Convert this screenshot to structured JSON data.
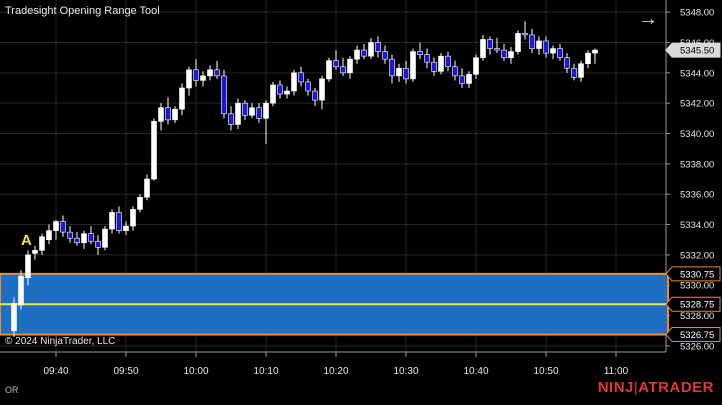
{
  "window": {
    "title": "Tradesight Opening Range Tool"
  },
  "footer": {
    "copyright": "© 2024 NinjaTrader, LLC",
    "status": "OR"
  },
  "brand": {
    "logo": "NINJATRADER",
    "color": "#e03a2a"
  },
  "marker": {
    "label": "A",
    "color": "#f3e44a"
  },
  "nav": {
    "icon": "arrow-right-icon"
  },
  "colors": {
    "background": "#000000",
    "grid": "#262626",
    "up": "#ffffff",
    "down": "#1a1ad6",
    "range_fill": "#1e6fc4",
    "range_border": "#f08a24",
    "range_mid": "#f3e44a"
  },
  "chart_data": {
    "type": "candlestick",
    "title": "Tradesight Opening Range Tool",
    "ylim": [
      5325.6,
      5348.8
    ],
    "y_ticks": [
      "5348.00",
      "5346.00",
      "5344.00",
      "5342.00",
      "5340.00",
      "5338.00",
      "5336.00",
      "5334.00",
      "5332.00",
      "5330.00",
      "5328.00",
      "5326.00"
    ],
    "x_ticks": [
      "09:40",
      "09:50",
      "10:00",
      "10:10",
      "10:20",
      "10:30",
      "10:40",
      "10:50",
      "11:00"
    ],
    "price_labels": [
      {
        "label": "5345.50",
        "value": 5345.5,
        "style": "last"
      },
      {
        "label": "5330.75",
        "value": 5330.75,
        "style": "range"
      },
      {
        "label": "5328.75",
        "value": 5328.75,
        "style": "range"
      },
      {
        "label": "5326.75",
        "value": 5326.75,
        "style": "range"
      }
    ],
    "opening_range": {
      "high": 5330.75,
      "mid": 5328.75,
      "low": 5326.75
    },
    "candles": [
      [
        5327.0,
        5329.2,
        5326.6,
        5328.8
      ],
      [
        5328.7,
        5331.0,
        5328.4,
        5330.6
      ],
      [
        5330.5,
        5332.3,
        5330.0,
        5332.0
      ],
      [
        5332.1,
        5332.6,
        5331.7,
        5332.3
      ],
      [
        5332.3,
        5333.4,
        5332.0,
        5333.2
      ],
      [
        5333.0,
        5334.0,
        5332.7,
        5333.6
      ],
      [
        5333.6,
        5334.3,
        5333.0,
        5334.2
      ],
      [
        5334.2,
        5334.6,
        5333.2,
        5333.5
      ],
      [
        5333.5,
        5333.9,
        5332.8,
        5333.1
      ],
      [
        5333.1,
        5333.5,
        5332.6,
        5332.8
      ],
      [
        5332.8,
        5333.6,
        5332.4,
        5333.4
      ],
      [
        5333.4,
        5333.9,
        5332.7,
        5332.9
      ],
      [
        5332.9,
        5333.3,
        5332.0,
        5332.5
      ],
      [
        5332.5,
        5333.9,
        5332.3,
        5333.7
      ],
      [
        5333.7,
        5335.0,
        5333.4,
        5334.8
      ],
      [
        5334.8,
        5335.2,
        5333.4,
        5333.6
      ],
      [
        5333.6,
        5334.2,
        5333.3,
        5333.9
      ],
      [
        5333.9,
        5335.2,
        5333.6,
        5335.0
      ],
      [
        5335.0,
        5336.0,
        5334.8,
        5335.8
      ],
      [
        5335.8,
        5337.3,
        5335.6,
        5337.0
      ],
      [
        5337.0,
        5341.0,
        5336.9,
        5340.8
      ],
      [
        5340.8,
        5342.0,
        5340.2,
        5341.7
      ],
      [
        5341.7,
        5342.4,
        5340.6,
        5340.9
      ],
      [
        5340.9,
        5341.8,
        5340.7,
        5341.6
      ],
      [
        5341.6,
        5343.3,
        5341.2,
        5343.0
      ],
      [
        5343.0,
        5344.4,
        5342.5,
        5344.2
      ],
      [
        5344.2,
        5344.9,
        5343.1,
        5343.5
      ],
      [
        5343.5,
        5344.1,
        5343.1,
        5343.8
      ],
      [
        5343.8,
        5344.5,
        5343.5,
        5344.2
      ],
      [
        5344.2,
        5344.8,
        5343.6,
        5343.8
      ],
      [
        5343.8,
        5344.2,
        5341.0,
        5341.3
      ],
      [
        5341.3,
        5341.8,
        5340.2,
        5340.6
      ],
      [
        5340.6,
        5342.3,
        5340.3,
        5342.0
      ],
      [
        5342.0,
        5342.2,
        5340.9,
        5341.2
      ],
      [
        5341.2,
        5342.0,
        5341.0,
        5341.7
      ],
      [
        5341.7,
        5342.0,
        5340.7,
        5341.0
      ],
      [
        5341.0,
        5342.2,
        5339.3,
        5342.0
      ],
      [
        5342.0,
        5343.4,
        5341.8,
        5343.2
      ],
      [
        5343.2,
        5343.5,
        5342.3,
        5342.6
      ],
      [
        5342.6,
        5343.1,
        5342.3,
        5342.8
      ],
      [
        5342.8,
        5344.2,
        5342.5,
        5344.0
      ],
      [
        5344.0,
        5344.4,
        5343.1,
        5343.4
      ],
      [
        5343.4,
        5343.6,
        5342.5,
        5342.8
      ],
      [
        5342.8,
        5343.0,
        5341.8,
        5342.2
      ],
      [
        5342.2,
        5343.8,
        5341.6,
        5343.6
      ],
      [
        5343.6,
        5345.0,
        5343.4,
        5344.8
      ],
      [
        5344.8,
        5345.5,
        5344.2,
        5344.4
      ],
      [
        5344.4,
        5345.0,
        5343.8,
        5344.0
      ],
      [
        5344.0,
        5345.1,
        5343.6,
        5344.9
      ],
      [
        5344.9,
        5345.8,
        5344.6,
        5345.5
      ],
      [
        5345.5,
        5345.9,
        5344.9,
        5345.1
      ],
      [
        5345.1,
        5346.3,
        5344.9,
        5346.0
      ],
      [
        5346.0,
        5346.4,
        5345.0,
        5345.4
      ],
      [
        5345.4,
        5345.8,
        5344.6,
        5344.9
      ],
      [
        5344.9,
        5345.2,
        5343.3,
        5343.8
      ],
      [
        5343.8,
        5344.6,
        5343.4,
        5344.3
      ],
      [
        5344.3,
        5344.8,
        5343.3,
        5343.6
      ],
      [
        5343.6,
        5345.6,
        5343.4,
        5345.4
      ],
      [
        5345.4,
        5346.0,
        5344.9,
        5345.2
      ],
      [
        5345.2,
        5345.6,
        5344.3,
        5344.7
      ],
      [
        5344.7,
        5345.0,
        5343.8,
        5344.1
      ],
      [
        5344.1,
        5345.3,
        5343.9,
        5345.1
      ],
      [
        5345.1,
        5345.4,
        5344.1,
        5344.4
      ],
      [
        5344.4,
        5344.8,
        5343.5,
        5343.8
      ],
      [
        5343.8,
        5344.3,
        5343.0,
        5343.3
      ],
      [
        5343.3,
        5344.1,
        5343.0,
        5343.9
      ],
      [
        5343.9,
        5345.2,
        5343.6,
        5345.0
      ],
      [
        5345.0,
        5346.5,
        5344.8,
        5346.2
      ],
      [
        5346.2,
        5346.4,
        5345.2,
        5345.6
      ],
      [
        5345.6,
        5346.3,
        5345.3,
        5345.5
      ],
      [
        5345.5,
        5345.9,
        5344.8,
        5345.0
      ],
      [
        5345.0,
        5345.7,
        5344.6,
        5345.4
      ],
      [
        5345.4,
        5346.8,
        5345.2,
        5346.6
      ],
      [
        5346.6,
        5347.4,
        5346.2,
        5346.5
      ],
      [
        5346.5,
        5346.9,
        5345.3,
        5345.6
      ],
      [
        5345.6,
        5346.4,
        5345.2,
        5346.1
      ],
      [
        5346.1,
        5346.4,
        5345.0,
        5345.3
      ],
      [
        5345.3,
        5345.8,
        5344.9,
        5345.6
      ],
      [
        5345.6,
        5345.9,
        5344.8,
        5345.0
      ],
      [
        5345.0,
        5345.3,
        5344.0,
        5344.3
      ],
      [
        5344.3,
        5344.6,
        5343.5,
        5343.7
      ],
      [
        5343.7,
        5344.8,
        5343.4,
        5344.6
      ],
      [
        5344.6,
        5345.5,
        5344.3,
        5345.3
      ],
      [
        5345.3,
        5345.6,
        5344.6,
        5345.5
      ]
    ],
    "candle_x_ticks": [
      6,
      16,
      26,
      36,
      46,
      56,
      66,
      76,
      86
    ]
  }
}
